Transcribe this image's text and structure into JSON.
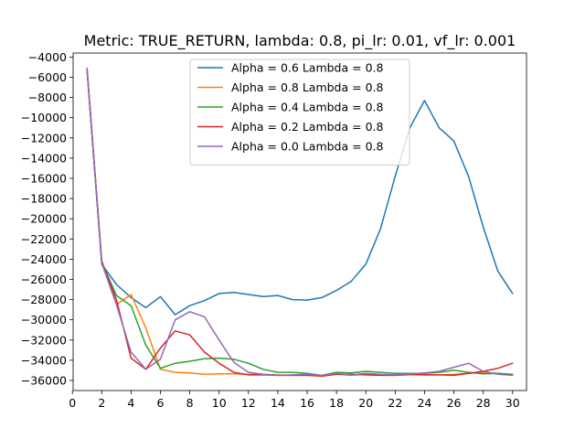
{
  "chart_data": {
    "type": "line",
    "title": "Metric: TRUE_RETURN, lambda: 0.8, pi_lr: 0.01, vf_lr: 0.001",
    "xlabel": "",
    "ylabel": "",
    "xlim": [
      0.05,
      30.95
    ],
    "ylim": [
      -37000,
      -3600
    ],
    "xticks": [
      0,
      2,
      4,
      6,
      8,
      10,
      12,
      14,
      16,
      18,
      20,
      22,
      24,
      26,
      28,
      30
    ],
    "yticks": [
      -4000,
      -6000,
      -8000,
      -10000,
      -12000,
      -14000,
      -16000,
      -18000,
      -20000,
      -22000,
      -24000,
      -26000,
      -28000,
      -30000,
      -32000,
      -34000,
      -36000
    ],
    "grid": false,
    "legend_position": "top-center",
    "x": [
      1,
      2,
      3,
      4,
      5,
      6,
      7,
      8,
      9,
      10,
      11,
      12,
      13,
      14,
      15,
      16,
      17,
      18,
      19,
      20,
      21,
      22,
      23,
      24,
      25,
      26,
      27,
      28,
      29,
      30
    ],
    "series": [
      {
        "name": "Alpha = 0.6  Lambda = 0.8",
        "color": "#1f77b4",
        "values": [
          -5200,
          -24500,
          -26500,
          -27800,
          -28800,
          -27700,
          -29500,
          -28600,
          -28100,
          -27400,
          -27300,
          -27500,
          -27700,
          -27600,
          -28000,
          -28050,
          -27800,
          -27100,
          -26200,
          -24500,
          -21000,
          -15800,
          -11000,
          -8300,
          -11000,
          -12300,
          -15800,
          -20800,
          -25200,
          -27400
        ]
      },
      {
        "name": "Alpha = 0.8  Lambda = 0.8",
        "color": "#ff7f0e",
        "values": [
          -5100,
          -24100,
          -28500,
          -27500,
          -30800,
          -34900,
          -35200,
          -35250,
          -35400,
          -35350,
          -35350,
          -35400,
          -35400,
          -35450,
          -35500,
          -35500,
          -35600,
          -35400,
          -35500,
          -35400,
          -35450,
          -35500,
          -35450,
          -35450,
          -35450,
          -35400,
          -35300,
          -35200,
          -35300,
          -35450
        ]
      },
      {
        "name": "Alpha = 0.4  Lambda = 0.8",
        "color": "#2ca02c",
        "values": [
          -5100,
          -24300,
          -27600,
          -28600,
          -32500,
          -34800,
          -34300,
          -34100,
          -33850,
          -33800,
          -33900,
          -34300,
          -34900,
          -35200,
          -35200,
          -35300,
          -35500,
          -35200,
          -35250,
          -35100,
          -35200,
          -35300,
          -35300,
          -35300,
          -35200,
          -35000,
          -35200,
          -35350,
          -35300,
          -35400
        ]
      },
      {
        "name": "Alpha = 0.2  Lambda = 0.8",
        "color": "#d62728",
        "values": [
          -5200,
          -24300,
          -28000,
          -33800,
          -34900,
          -32800,
          -31100,
          -31500,
          -33200,
          -34300,
          -35200,
          -35450,
          -35450,
          -35500,
          -35500,
          -35500,
          -35550,
          -35400,
          -35400,
          -35450,
          -35500,
          -35500,
          -35400,
          -35450,
          -35450,
          -35500,
          -35300,
          -35100,
          -34800,
          -34300
        ]
      },
      {
        "name": "Alpha = 0.0  Lambda = 0.8",
        "color": "#9467bd",
        "values": [
          -5100,
          -24400,
          -28500,
          -33200,
          -34900,
          -33900,
          -30000,
          -29200,
          -29700,
          -32000,
          -34200,
          -35200,
          -35400,
          -35500,
          -35450,
          -35400,
          -35500,
          -35300,
          -35450,
          -35300,
          -35400,
          -35450,
          -35350,
          -35250,
          -35100,
          -34700,
          -34300,
          -35100,
          -35400,
          -35500
        ]
      }
    ]
  }
}
